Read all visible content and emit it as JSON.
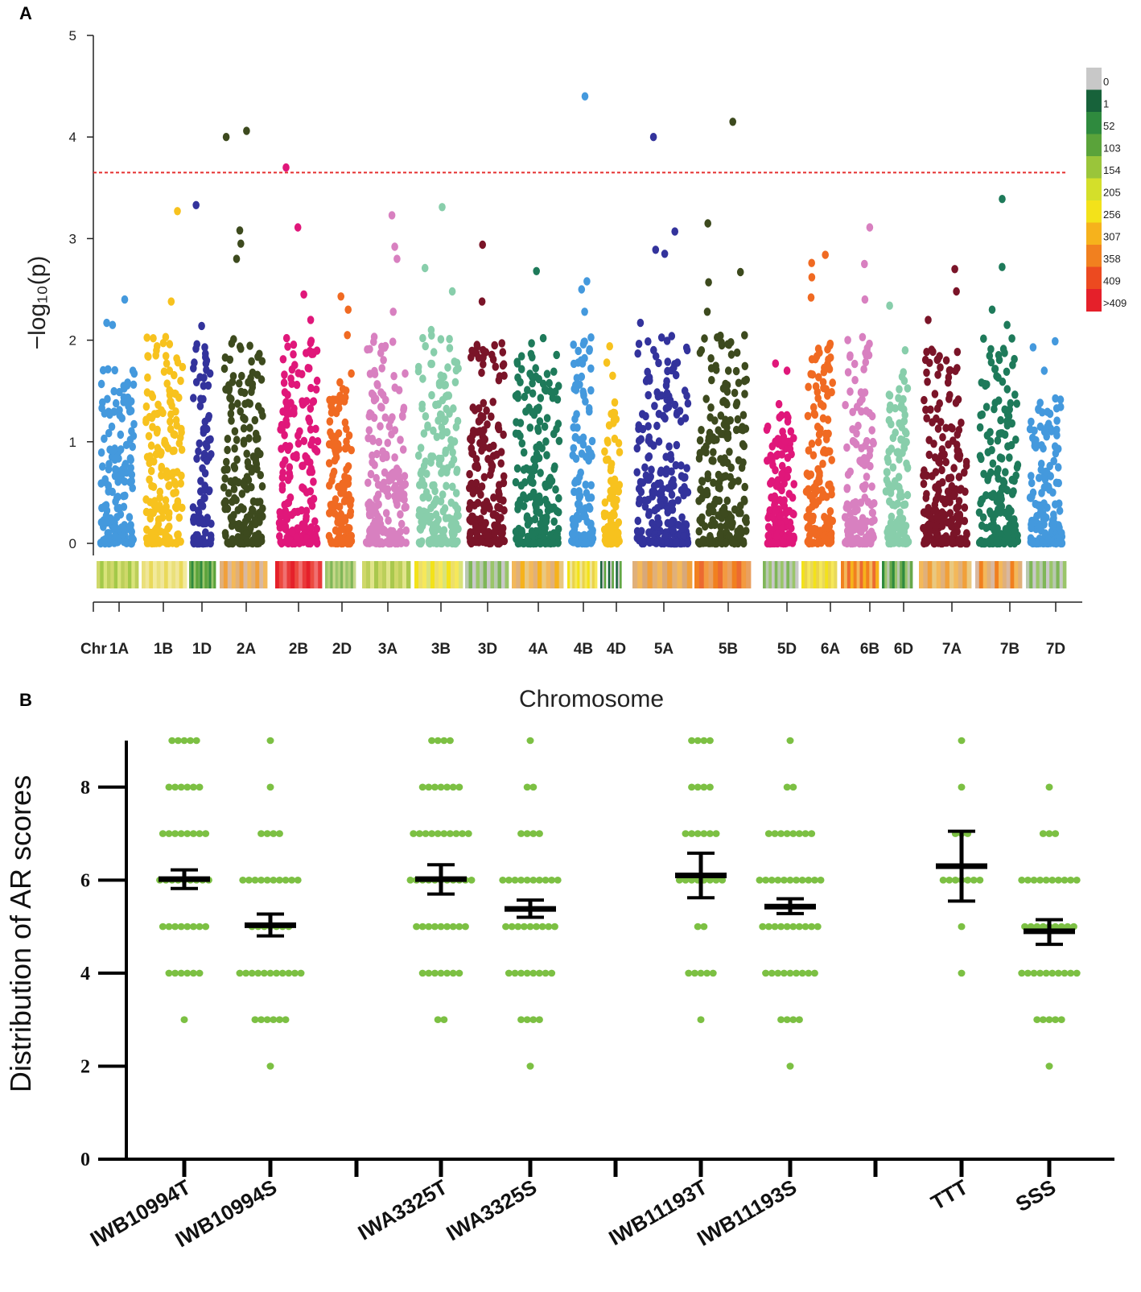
{
  "panel_a_letter": "A",
  "panel_b_letter": "B",
  "chart_data": [
    {
      "type": "scatter",
      "subtype": "manhattan",
      "xlabel": "Chromosome",
      "ylabel": "−log₁₀(p)",
      "ylim": [
        0,
        5
      ],
      "yticks": [
        0,
        1,
        2,
        3,
        4,
        5
      ],
      "threshold": 3.65,
      "axis_prefix": "Chr",
      "chromosomes": [
        {
          "name": "1A",
          "color": "#4499dd",
          "max": 2.4,
          "tops": [
            2.4,
            2.17,
            2.15,
            1.55
          ]
        },
        {
          "name": "1B",
          "color": "#f7c21e",
          "max": 3.27,
          "tops": [
            3.27,
            2.38,
            1.82,
            1.7
          ]
        },
        {
          "name": "1D",
          "color": "#33339c",
          "max": 3.33,
          "tops": [
            3.33,
            2.14,
            1.93,
            1.63
          ]
        },
        {
          "name": "2A",
          "color": "#3d4a1e",
          "max": 4.06,
          "tops": [
            4.06,
            4.0,
            3.08,
            2.95,
            2.8
          ]
        },
        {
          "name": "2B",
          "color": "#e0177a",
          "max": 3.7,
          "tops": [
            3.7,
            3.11,
            2.45,
            2.2
          ]
        },
        {
          "name": "2D",
          "color": "#f06a22",
          "max": 2.43,
          "tops": [
            2.43,
            2.3,
            2.05
          ]
        },
        {
          "name": "3A",
          "color": "#d880c0",
          "max": 3.23,
          "tops": [
            3.23,
            2.92,
            2.8,
            2.28
          ]
        },
        {
          "name": "3B",
          "color": "#88ceab",
          "max": 3.31,
          "tops": [
            3.31,
            2.71,
            2.48,
            2.1
          ]
        },
        {
          "name": "3D",
          "color": "#7a1428",
          "max": 2.94,
          "tops": [
            2.94,
            2.38,
            1.97,
            1.95
          ]
        },
        {
          "name": "4A",
          "color": "#1e7a5a",
          "max": 2.68,
          "tops": [
            2.68,
            2.02,
            1.97
          ]
        },
        {
          "name": "4B",
          "color": "#4499dd",
          "max": 4.4,
          "tops": [
            4.4,
            2.58,
            2.5,
            2.28
          ]
        },
        {
          "name": "4D",
          "color": "#f7c21e",
          "max": 1.94,
          "tops": [
            1.94,
            1.78,
            1.65
          ]
        },
        {
          "name": "5A",
          "color": "#33339c",
          "max": 4.0,
          "tops": [
            4.0,
            3.07,
            2.89,
            2.85,
            2.17
          ]
        },
        {
          "name": "5B",
          "color": "#3d4a1e",
          "max": 4.15,
          "tops": [
            4.15,
            3.15,
            2.67,
            2.57,
            2.28
          ]
        },
        {
          "name": "5D",
          "color": "#e0177a",
          "max": 1.77,
          "tops": [
            1.77,
            1.7,
            1.37
          ]
        },
        {
          "name": "6A",
          "color": "#f06a22",
          "max": 2.84,
          "tops": [
            2.84,
            2.76,
            2.62,
            2.42
          ]
        },
        {
          "name": "6B",
          "color": "#d880c0",
          "max": 3.11,
          "tops": [
            3.11,
            2.75,
            2.4
          ]
        },
        {
          "name": "6D",
          "color": "#88ceab",
          "max": 2.34,
          "tops": [
            2.34,
            1.9,
            1.6
          ]
        },
        {
          "name": "7A",
          "color": "#7a1428",
          "max": 2.7,
          "tops": [
            2.7,
            2.48,
            2.2
          ]
        },
        {
          "name": "7B",
          "color": "#1e7a5a",
          "max": 3.39,
          "tops": [
            3.39,
            2.72,
            2.3,
            2.15
          ]
        },
        {
          "name": "7D",
          "color": "#4499dd",
          "max": 1.99,
          "tops": [
            1.99,
            1.93,
            1.7
          ]
        }
      ],
      "density_legend": {
        "labels": [
          "0",
          "1",
          "52",
          "103",
          "154",
          "205",
          "256",
          "307",
          "358",
          "409",
          ">409"
        ],
        "colors": [
          "#c8c8c8",
          "#17623a",
          "#2f8a3e",
          "#5aa33a",
          "#9ac53a",
          "#d4df2a",
          "#f3e21a",
          "#f6b21c",
          "#f1801f",
          "#ec4a20",
          "#e5202a"
        ]
      },
      "density_bars": [
        [
          "#cfd86a",
          "#a3c949",
          "#d9e37a",
          "#bccf5a"
        ],
        [
          "#eae07a",
          "#f0e69a",
          "#e9d95a",
          "#f2ea9c"
        ],
        [
          "#67a84a",
          "#2f8a3e",
          "#9ac56a",
          "#5aa33a"
        ],
        [
          "#e0b07a",
          "#f1a03a",
          "#d8b8a0",
          "#f3b85a"
        ],
        [
          "#e5202a",
          "#ec4a40",
          "#f07070",
          "#e93a3a"
        ],
        [
          "#9ac56a",
          "#b5d07a",
          "#7fb658",
          "#c8d88a"
        ],
        [
          "#cfd86a",
          "#bccf5a",
          "#e0e48a",
          "#a9c84d"
        ],
        [
          "#f3e21a",
          "#ecdf6a",
          "#f6e85a",
          "#d9e37a"
        ],
        [
          "#b8c8b0",
          "#7fb658",
          "#c8c8c8",
          "#9ac56a"
        ],
        [
          "#f3b85a",
          "#e0b07a",
          "#f6b21c",
          "#e9c880"
        ],
        [
          "#f3e21a",
          "#f0e69a",
          "#ead34a",
          "#f6e85a"
        ],
        [
          "#17623a",
          "#c8c8c8",
          "#5aa33a",
          "#ffffff"
        ],
        [
          "#e0b07a",
          "#f3b85a",
          "#d8a87a",
          "#f1a03a"
        ],
        [
          "#f1801f",
          "#ec6a30",
          "#f39a40",
          "#e9a060"
        ],
        [
          "#7fb658",
          "#b8c8b0",
          "#9ac56a",
          "#c8c8c8"
        ],
        [
          "#f3e21a",
          "#ead34a",
          "#f6e85a",
          "#e9d95a"
        ],
        [
          "#f1801f",
          "#f3b85a",
          "#ec6a30",
          "#f6b21c"
        ],
        [
          "#2f8a3e",
          "#9ac56a",
          "#b8c8b0",
          "#67a84a"
        ],
        [
          "#f3b85a",
          "#e0b07a",
          "#f1a03a",
          "#e9c880"
        ],
        [
          "#d8b8a0",
          "#f1801f",
          "#f3b85a",
          "#e0b07a"
        ],
        [
          "#b8c8b0",
          "#7fb658",
          "#c8c8c8",
          "#9ac56a"
        ]
      ]
    },
    {
      "type": "scatter",
      "subtype": "dot-plot with mean and error bars",
      "ylabel": "Distribution of AR scores",
      "ylim": [
        0,
        9
      ],
      "yticks": [
        0,
        2,
        4,
        6,
        8
      ],
      "groups": [
        {
          "label": "IWB10994T",
          "mean": 6.02,
          "err_low": 5.82,
          "err_high": 6.22,
          "points": [
            {
              "v": 9,
              "n": 5
            },
            {
              "v": 8,
              "n": 6
            },
            {
              "v": 7,
              "n": 8
            },
            {
              "v": 6,
              "n": 9
            },
            {
              "v": 5,
              "n": 8
            },
            {
              "v": 4,
              "n": 6
            },
            {
              "v": 3,
              "n": 1
            }
          ]
        },
        {
          "label": "IWB10994S",
          "mean": 5.03,
          "err_low": 4.8,
          "err_high": 5.27,
          "points": [
            {
              "v": 9,
              "n": 1
            },
            {
              "v": 8,
              "n": 1
            },
            {
              "v": 7,
              "n": 4
            },
            {
              "v": 6,
              "n": 10
            },
            {
              "v": 5,
              "n": 7
            },
            {
              "v": 4,
              "n": 11
            },
            {
              "v": 3,
              "n": 6
            },
            {
              "v": 2,
              "n": 1
            }
          ]
        },
        {
          "label": "IWA3325T",
          "mean": 6.02,
          "err_low": 5.7,
          "err_high": 6.33,
          "points": [
            {
              "v": 9,
              "n": 4
            },
            {
              "v": 8,
              "n": 7
            },
            {
              "v": 7,
              "n": 10
            },
            {
              "v": 6,
              "n": 11
            },
            {
              "v": 5,
              "n": 9
            },
            {
              "v": 4,
              "n": 7
            },
            {
              "v": 3,
              "n": 2
            }
          ]
        },
        {
          "label": "IWA3325S",
          "mean": 5.38,
          "err_low": 5.2,
          "err_high": 5.57,
          "points": [
            {
              "v": 9,
              "n": 1
            },
            {
              "v": 8,
              "n": 2
            },
            {
              "v": 7,
              "n": 4
            },
            {
              "v": 6,
              "n": 10
            },
            {
              "v": 5,
              "n": 9
            },
            {
              "v": 4,
              "n": 8
            },
            {
              "v": 3,
              "n": 4
            },
            {
              "v": 2,
              "n": 1
            }
          ]
        },
        {
          "label": "IWB11193T",
          "mean": 6.1,
          "err_low": 5.62,
          "err_high": 6.58,
          "points": [
            {
              "v": 9,
              "n": 4
            },
            {
              "v": 8,
              "n": 4
            },
            {
              "v": 7,
              "n": 6
            },
            {
              "v": 6,
              "n": 8
            },
            {
              "v": 5,
              "n": 2
            },
            {
              "v": 4,
              "n": 5
            },
            {
              "v": 3,
              "n": 1
            }
          ]
        },
        {
          "label": "IWB11193S",
          "mean": 5.43,
          "err_low": 5.28,
          "err_high": 5.6,
          "points": [
            {
              "v": 9,
              "n": 1
            },
            {
              "v": 8,
              "n": 2
            },
            {
              "v": 7,
              "n": 8
            },
            {
              "v": 6,
              "n": 11
            },
            {
              "v": 5,
              "n": 10
            },
            {
              "v": 4,
              "n": 9
            },
            {
              "v": 3,
              "n": 4
            },
            {
              "v": 2,
              "n": 1
            }
          ]
        },
        {
          "label": "TTT",
          "mean": 6.3,
          "err_low": 5.55,
          "err_high": 7.05,
          "points": [
            {
              "v": 9,
              "n": 1
            },
            {
              "v": 8,
              "n": 1
            },
            {
              "v": 7,
              "n": 3
            },
            {
              "v": 6,
              "n": 7
            },
            {
              "v": 5,
              "n": 1
            },
            {
              "v": 4,
              "n": 1
            }
          ]
        },
        {
          "label": "SSS",
          "mean": 4.9,
          "err_low": 4.62,
          "err_high": 5.15,
          "points": [
            {
              "v": 8,
              "n": 1
            },
            {
              "v": 7,
              "n": 3
            },
            {
              "v": 6,
              "n": 10
            },
            {
              "v": 5,
              "n": 9
            },
            {
              "v": 4,
              "n": 10
            },
            {
              "v": 3,
              "n": 5
            },
            {
              "v": 2,
              "n": 1
            }
          ]
        }
      ]
    }
  ]
}
